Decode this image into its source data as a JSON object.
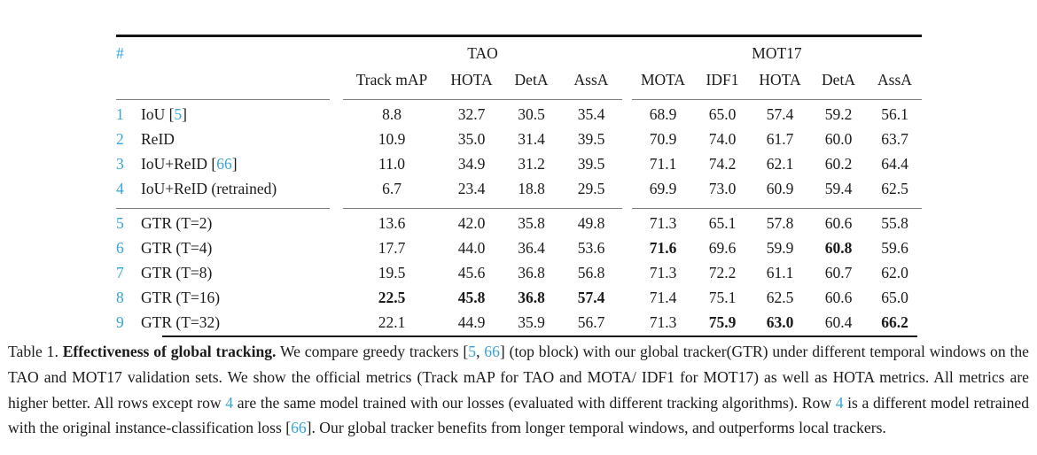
{
  "colors": {
    "accent": "#36a4d9",
    "text": "#1b1b1b",
    "rule_heavy": "#141414",
    "rule_light": "#7e7e7e"
  },
  "table": {
    "index_header": "#",
    "groups": [
      "TAO",
      "MOT17"
    ],
    "columns": [
      "Track mAP",
      "HOTA",
      "DetA",
      "AssA",
      "MOTA",
      "IDF1",
      "HOTA",
      "DetA",
      "AssA"
    ],
    "blocks": [
      {
        "name": "greedy-trackers",
        "rows": [
          {
            "num": "1",
            "method": [
              {
                "t": "IoU ["
              },
              {
                "t": "5",
                "cite": true
              },
              {
                "t": "]"
              }
            ],
            "values": [
              "8.8",
              "32.7",
              "30.5",
              "35.4",
              "68.9",
              "65.0",
              "57.4",
              "59.2",
              "56.1"
            ],
            "bold": []
          },
          {
            "num": "2",
            "method": [
              {
                "t": "ReID"
              }
            ],
            "values": [
              "10.9",
              "35.0",
              "31.4",
              "39.5",
              "70.9",
              "74.0",
              "61.7",
              "60.0",
              "63.7"
            ],
            "bold": []
          },
          {
            "num": "3",
            "method": [
              {
                "t": "IoU+ReID ["
              },
              {
                "t": "66",
                "cite": true
              },
              {
                "t": "]"
              }
            ],
            "values": [
              "11.0",
              "34.9",
              "31.2",
              "39.5",
              "71.1",
              "74.2",
              "62.1",
              "60.2",
              "64.4"
            ],
            "bold": []
          },
          {
            "num": "4",
            "method": [
              {
                "t": "IoU+ReID (retrained)"
              }
            ],
            "values": [
              "6.7",
              "23.4",
              "18.8",
              "29.5",
              "69.9",
              "73.0",
              "60.9",
              "59.4",
              "62.5"
            ],
            "bold": []
          }
        ]
      },
      {
        "name": "global-tracker-gtr",
        "rows": [
          {
            "num": "5",
            "method": [
              {
                "t": "GTR (T=2)"
              }
            ],
            "values": [
              "13.6",
              "42.0",
              "35.8",
              "49.8",
              "71.3",
              "65.1",
              "57.8",
              "60.6",
              "55.8"
            ],
            "bold": []
          },
          {
            "num": "6",
            "method": [
              {
                "t": "GTR (T=4)"
              }
            ],
            "values": [
              "17.7",
              "44.0",
              "36.4",
              "53.6",
              "71.6",
              "69.6",
              "59.9",
              "60.8",
              "59.6"
            ],
            "bold": [
              4,
              7
            ]
          },
          {
            "num": "7",
            "method": [
              {
                "t": "GTR (T=8)"
              }
            ],
            "values": [
              "19.5",
              "45.6",
              "36.8",
              "56.8",
              "71.3",
              "72.2",
              "61.1",
              "60.7",
              "62.0"
            ],
            "bold": []
          },
          {
            "num": "8",
            "method": [
              {
                "t": "GTR (T=16)"
              }
            ],
            "values": [
              "22.5",
              "45.8",
              "36.8",
              "57.4",
              "71.4",
              "75.1",
              "62.5",
              "60.6",
              "65.0"
            ],
            "bold": [
              0,
              1,
              2,
              3
            ]
          },
          {
            "num": "9",
            "method": [
              {
                "t": "GTR (T=32)"
              }
            ],
            "values": [
              "22.1",
              "44.9",
              "35.9",
              "56.7",
              "71.3",
              "75.9",
              "63.0",
              "60.4",
              "66.2"
            ],
            "bold": [
              5,
              6,
              8
            ]
          }
        ]
      }
    ]
  },
  "caption": {
    "segments": [
      {
        "t": "Table 1. "
      },
      {
        "t": "Effectiveness of global tracking.",
        "bold": true
      },
      {
        "t": " We compare greedy trackers ["
      },
      {
        "t": "5",
        "cite": true,
        "name": "citation-link"
      },
      {
        "t": ", "
      },
      {
        "t": "66",
        "cite": true,
        "name": "citation-link"
      },
      {
        "t": "] (top block) with our global tracker(GTR) under different temporal windows on the TAO and MOT17 validation sets. We show the official metrics (Track mAP for TAO and MOTA/ IDF1 for MOT17) as well as HOTA metrics. All metrics are higher better. All rows except row "
      },
      {
        "t": "4",
        "cite": true,
        "name": "row-ref-link"
      },
      {
        "t": " are the same model trained with our losses (evaluated with different tracking algorithms). Row "
      },
      {
        "t": "4",
        "cite": true,
        "name": "row-ref-link"
      },
      {
        "t": " is a different model retrained with the original instance-classification loss ["
      },
      {
        "t": "66",
        "cite": true,
        "name": "citation-link"
      },
      {
        "t": "]. Our global tracker benefits from longer temporal windows, and outperforms local trackers."
      }
    ]
  }
}
